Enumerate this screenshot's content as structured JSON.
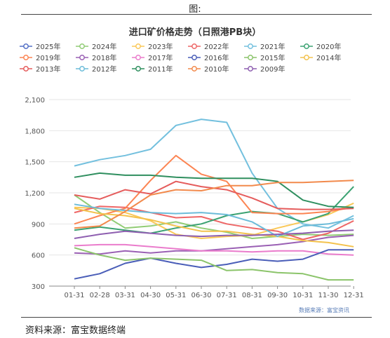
{
  "figure_label": "图:",
  "source_note": "资料来源：富宝数据终端",
  "chart_data": {
    "type": "line",
    "title": "进口矿价格走势（日照港PB块）",
    "watermark": "数据来源：富宝资讯",
    "xlabel": "",
    "ylabel": "",
    "ylim": [
      300,
      2100
    ],
    "yticks": [
      "300",
      "600",
      "900",
      "1,200",
      "1,500",
      "1,800",
      "2,100"
    ],
    "grid": "horizontal",
    "legend_position": "top",
    "x": [
      "01-31",
      "02-28",
      "03-31",
      "04-30",
      "05-31",
      "06-30",
      "07-31",
      "08-31",
      "09-30",
      "10-31",
      "11-30",
      "12-31"
    ],
    "series": [
      {
        "name": "2025年",
        "color": "#5470c6",
        "values": [
          null,
          null,
          null,
          null,
          null,
          null,
          null,
          null,
          null,
          null,
          null,
          null
        ]
      },
      {
        "name": "2024年",
        "color": "#91cc75",
        "values": [
          1180,
          1010,
          860,
          880,
          920,
          860,
          820,
          760,
          780,
          800,
          790,
          800
        ]
      },
      {
        "name": "2023年",
        "color": "#fac858",
        "values": [
          1060,
          1050,
          1010,
          930,
          800,
          760,
          780,
          790,
          860,
          920,
          990,
          1100
        ]
      },
      {
        "name": "2022年",
        "color": "#ee6666",
        "values": [
          1010,
          1070,
          1060,
          1010,
          960,
          970,
          900,
          860,
          830,
          750,
          810,
          930
        ]
      },
      {
        "name": "2021年",
        "color": "#73c0de",
        "values": [
          1460,
          1520,
          1560,
          1620,
          1850,
          1910,
          1880,
          1390,
          1050,
          900,
          860,
          980
        ]
      },
      {
        "name": "2020年",
        "color": "#3ba272",
        "values": [
          840,
          870,
          840,
          810,
          860,
          900,
          980,
          1020,
          1000,
          920,
          1000,
          1260
        ]
      },
      {
        "name": "2019年",
        "color": "#fc8452",
        "values": [
          900,
          980,
          1050,
          1320,
          1560,
          1380,
          1310,
          1010,
          1000,
          1000,
          1020,
          1060
        ]
      },
      {
        "name": "2018年",
        "color": "#9a60b4",
        "values": [
          620,
          610,
          640,
          620,
          640,
          640,
          660,
          680,
          700,
          730,
          770,
          790
        ]
      },
      {
        "name": "2017年",
        "color": "#ea7ccc",
        "values": [
          690,
          700,
          700,
          680,
          660,
          640,
          640,
          630,
          640,
          640,
          610,
          600
        ]
      },
      {
        "name": "2016年",
        "color": "#4a5eb8",
        "values": [
          370,
          420,
          520,
          570,
          520,
          480,
          510,
          560,
          540,
          560,
          650,
          650
        ]
      },
      {
        "name": "2015年",
        "color": "#8bc46a",
        "values": [
          670,
          600,
          550,
          570,
          560,
          550,
          450,
          460,
          430,
          420,
          360,
          360
        ]
      },
      {
        "name": "2014年",
        "color": "#f3c24d",
        "values": [
          1050,
          1000,
          980,
          940,
          880,
          830,
          830,
          800,
          780,
          740,
          720,
          680
        ]
      },
      {
        "name": "2013年",
        "color": "#e55c5c",
        "values": [
          1180,
          1140,
          1230,
          1190,
          1310,
          1260,
          1230,
          1150,
          1050,
          1040,
          1040,
          1050
        ]
      },
      {
        "name": "2012年",
        "color": "#6cbcd9",
        "values": [
          1090,
          1050,
          1030,
          1010,
          1000,
          1010,
          990,
          920,
          780,
          880,
          900,
          950
        ]
      },
      {
        "name": "2011年",
        "color": "#2f8f5f",
        "values": [
          1350,
          1390,
          1370,
          1370,
          1350,
          1340,
          1340,
          1340,
          1310,
          1130,
          1070,
          1060
        ]
      },
      {
        "name": "2010年",
        "color": "#f28a4c",
        "values": [
          860,
          880,
          1020,
          1180,
          1230,
          1220,
          1270,
          1270,
          1300,
          1300,
          1310,
          1320
        ]
      },
      {
        "name": "2009年",
        "color": "#8e5fb0",
        "values": [
          760,
          800,
          830,
          810,
          790,
          780,
          790,
          790,
          800,
          810,
          830,
          840
        ]
      }
    ]
  }
}
